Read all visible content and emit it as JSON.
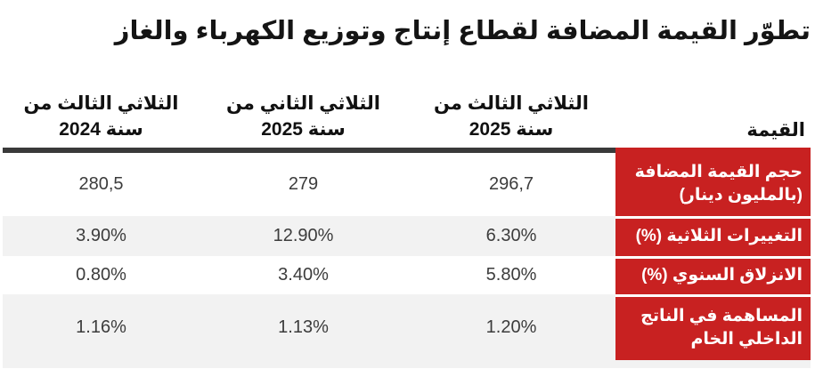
{
  "title": "تطوّر القيمة المضافة لقطاع إنتاج وتوزيع الكهرباء والغاز",
  "table": {
    "value_column_header": "القيمة",
    "period_headers": [
      {
        "line1": "الثلاثي الثالث من",
        "line2": "سنة 2025"
      },
      {
        "line1": "الثلاثي الثاني من",
        "line2": "سنة 2025"
      },
      {
        "line1": "الثلاثي الثالث من",
        "line2": "سنة 2024"
      }
    ],
    "rows": [
      {
        "label_line1": "حجم القيمة المضافة",
        "label_line2": "(بالمليون دينار)",
        "values": [
          "296,7",
          "279",
          "280,5"
        ]
      },
      {
        "label_line1": "التغييرات الثلاثية (%)",
        "label_line2": "",
        "values": [
          "6.30%",
          "12.90%",
          "3.90%"
        ]
      },
      {
        "label_line1": "الانزلاق السنوي (%)",
        "label_line2": "",
        "values": [
          "5.80%",
          "3.40%",
          "0.80%"
        ]
      },
      {
        "label_line1": "المساهمة في الناتج",
        "label_line2": "الداخلي الخام",
        "values": [
          "1.20%",
          "1.13%",
          "1.16%"
        ]
      }
    ]
  },
  "colors": {
    "accent_red": "#c82121",
    "separator_dark": "#3a3a3a",
    "row_alt_gray": "#f2f2f2"
  },
  "chart_data": {
    "type": "table",
    "title": "تطوّر القيمة المضافة لقطاع إنتاج وتوزيع الكهرباء والغاز",
    "columns": [
      "القيمة",
      "الثلاثي الثالث من سنة 2025",
      "الثلاثي الثاني من سنة 2025",
      "الثلاثي الثالث من سنة 2024"
    ],
    "rows": [
      [
        "حجم القيمة المضافة (بالمليون دينار)",
        "296,7",
        "279",
        "280,5"
      ],
      [
        "التغييرات الثلاثية (%)",
        "6.30%",
        "12.90%",
        "3.90%"
      ],
      [
        "الانزلاق السنوي (%)",
        "5.80%",
        "3.40%",
        "0.80%"
      ],
      [
        "المساهمة في الناتج الداخلي الخام",
        "1.20%",
        "1.13%",
        "1.16%"
      ]
    ],
    "layout": "RTL table, label column on the right with red background, data columns centered, alternating white/gray rows"
  }
}
